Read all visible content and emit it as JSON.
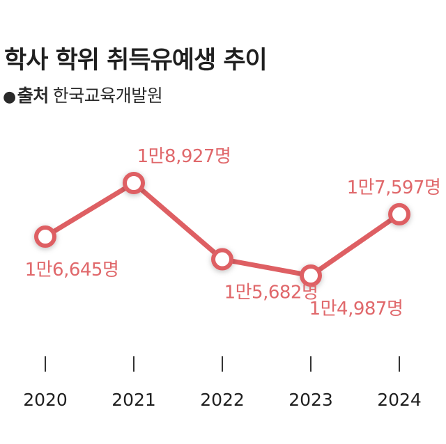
{
  "title": "학사 학위 취득유예생 추이",
  "source": {
    "bullet": "●",
    "label": "출처",
    "name": "한국교육개발원"
  },
  "colors": {
    "line": "#de5f63",
    "label": "#e0686b",
    "text": "#1f1f1f",
    "tick": "#333333"
  },
  "chart_data": {
    "type": "line",
    "title": "학사 학위 취득유예생 추이",
    "xlabel": "",
    "ylabel": "",
    "categories": [
      "2020",
      "2021",
      "2022",
      "2023",
      "2024"
    ],
    "series": [
      {
        "name": "학사 학위 취득유예생",
        "values": [
          16645,
          18927,
          15682,
          14987,
          17597
        ],
        "labels": [
          "1만6,645명",
          "1만8,927명",
          "1만5,682명",
          "1만4,987명",
          "1만7,597명"
        ]
      }
    ],
    "label_positions": [
      "below",
      "above",
      "below",
      "below",
      "above"
    ],
    "ylim": [
      14987,
      18927
    ],
    "grid": false,
    "legend": "none"
  }
}
